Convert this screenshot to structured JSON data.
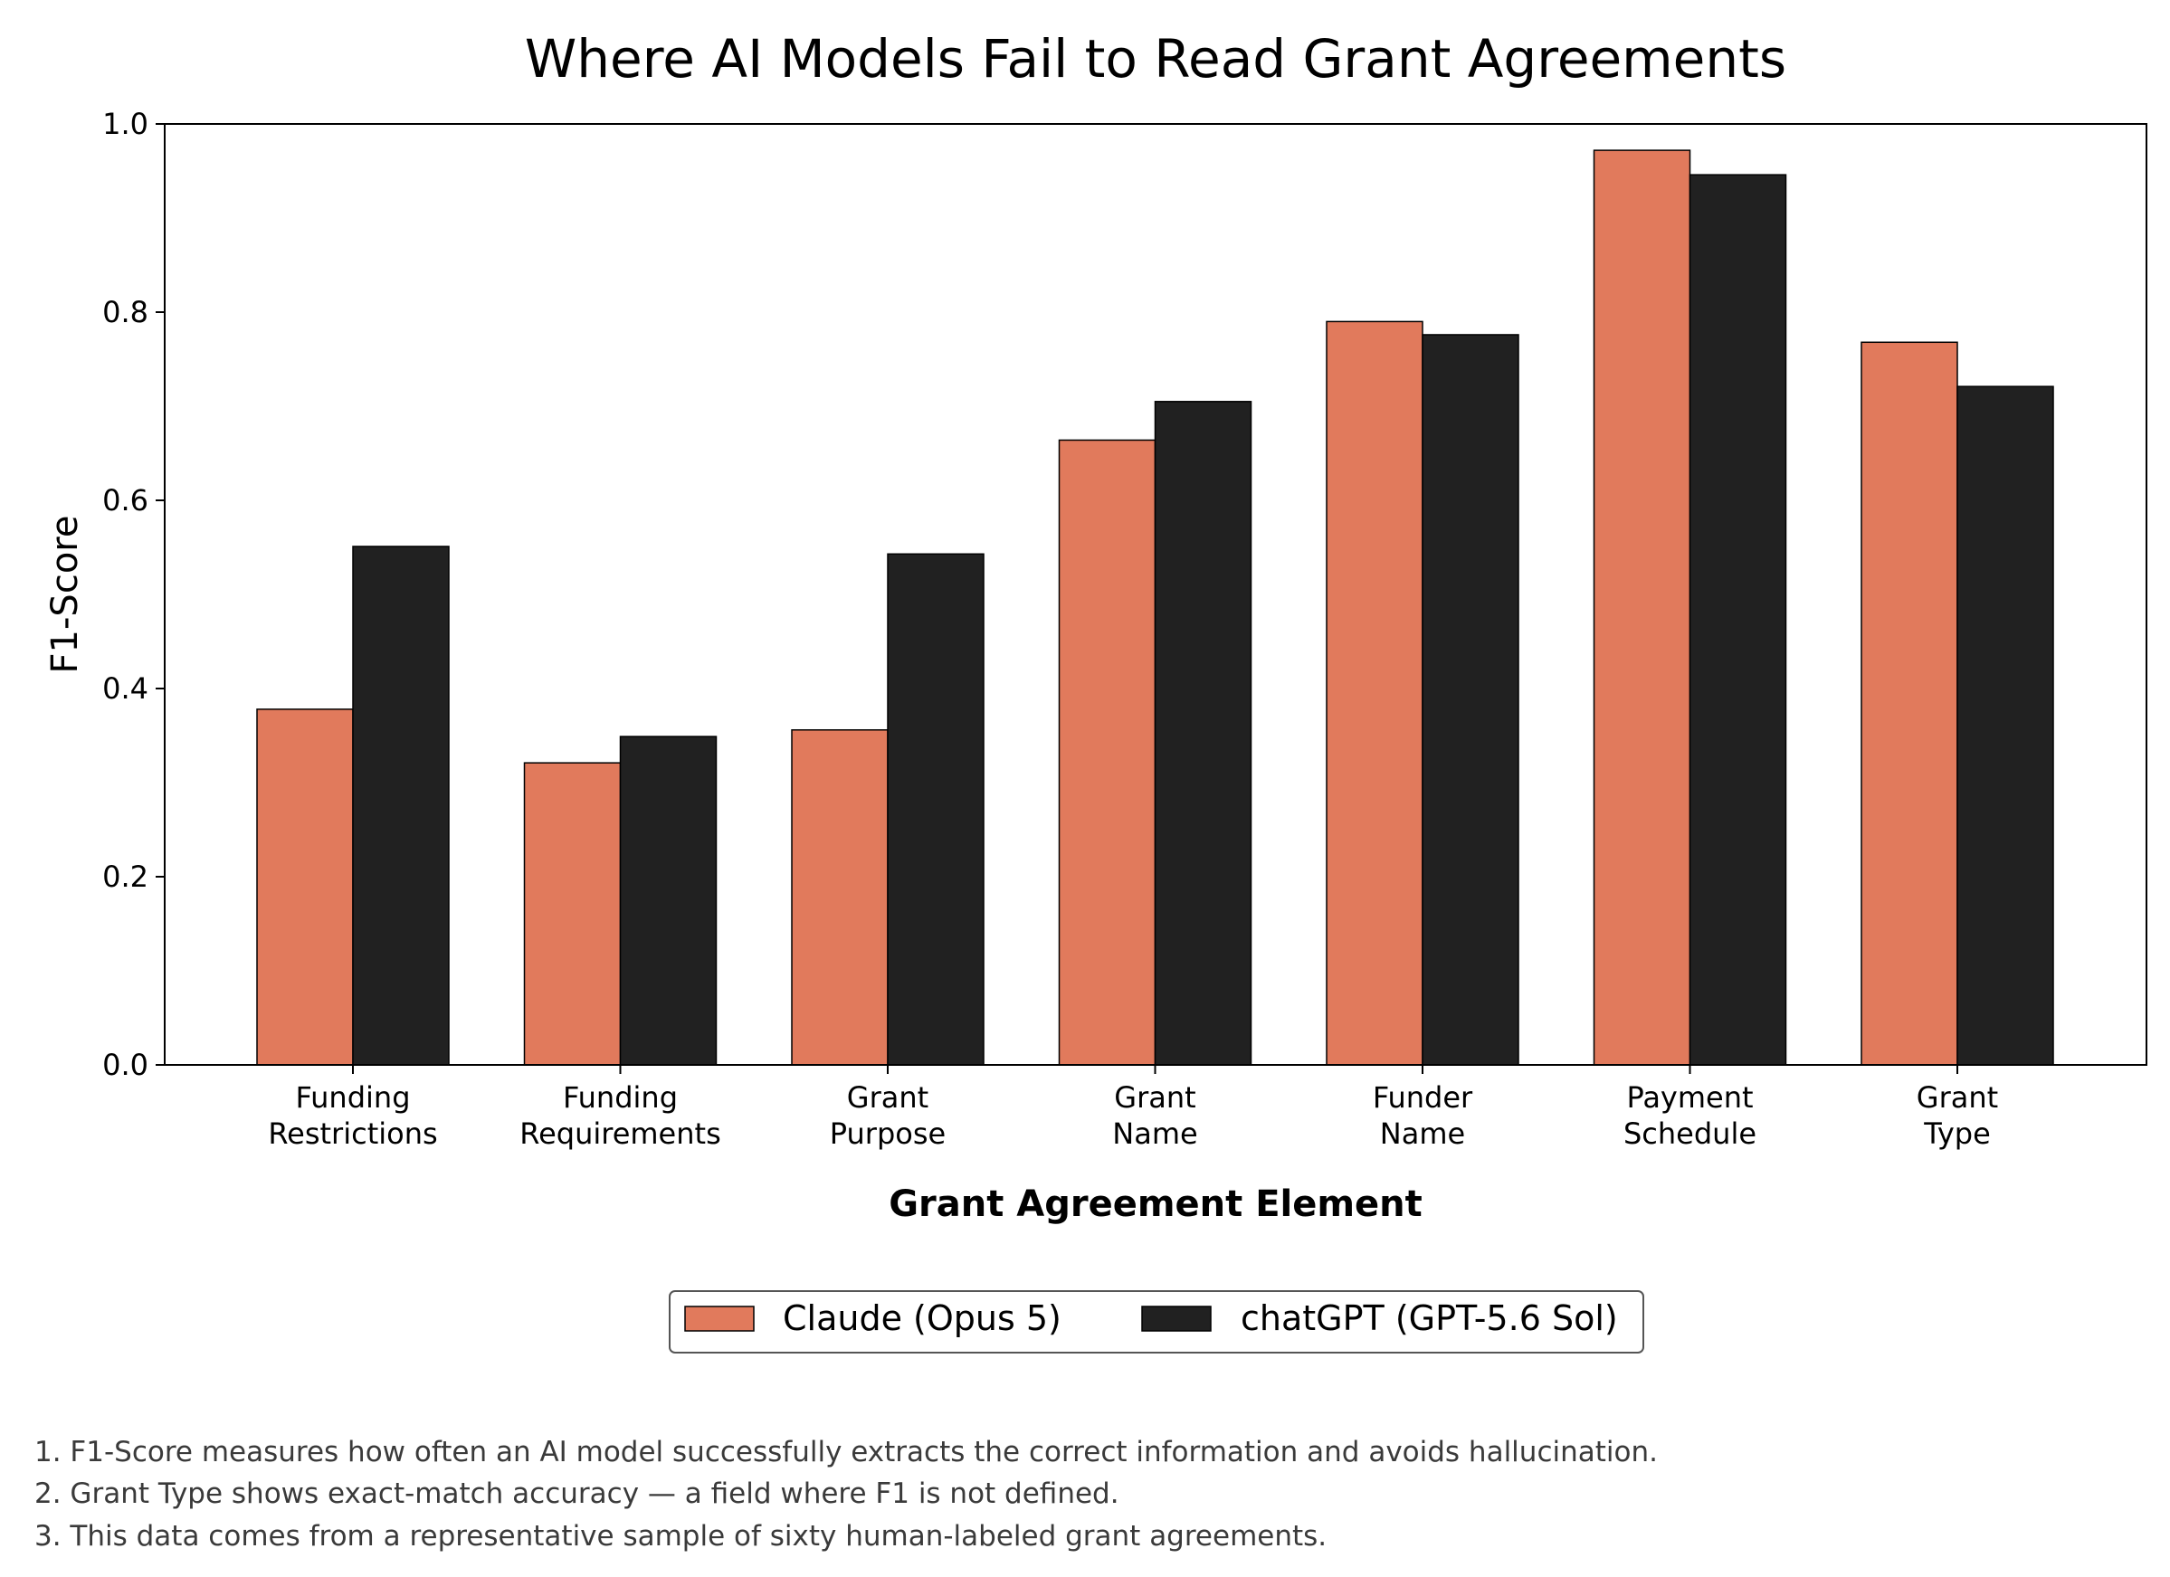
{
  "chart_data": {
    "type": "bar",
    "title": "Where AI Models Fail to Read Grant Agreements",
    "xlabel": "Grant Agreement Element",
    "ylabel": "F1-Score",
    "ylim": [
      0,
      1.0
    ],
    "yticks": [
      "0.0",
      "0.2",
      "0.4",
      "0.6",
      "0.8",
      "1.0"
    ],
    "categories": [
      [
        "Funding",
        "Restrictions"
      ],
      [
        "Funding",
        "Requirements"
      ],
      [
        "Grant",
        "Purpose"
      ],
      [
        "Grant",
        "Name"
      ],
      [
        "Funder",
        "Name"
      ],
      [
        "Payment",
        "Schedule"
      ],
      [
        "Grant",
        "Type"
      ]
    ],
    "series": [
      {
        "name": "Claude (Opus 5)",
        "color": "#E17A5C",
        "values": [
          0.378,
          0.321,
          0.356,
          0.664,
          0.79,
          0.972,
          0.768
        ]
      },
      {
        "name": "chatGPT (GPT-5.6 Sol)",
        "color": "#212121",
        "values": [
          0.551,
          0.349,
          0.543,
          0.705,
          0.776,
          0.946,
          0.721
        ]
      }
    ],
    "grid": false,
    "legend_position": "bottom-center"
  },
  "footnotes": [
    "1. F1-Score measures how often an AI model successfully extracts the correct information and avoids hallucination.",
    "2. Grant Type shows exact-match accuracy — a field where F1 is not defined.",
    "3. This data comes from a representative sample of sixty human-labeled grant agreements."
  ]
}
